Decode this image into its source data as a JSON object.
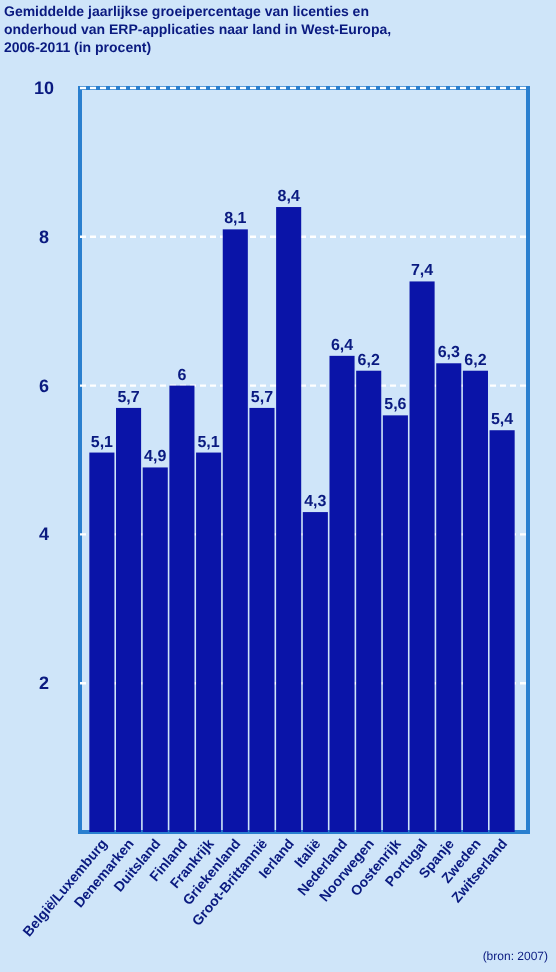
{
  "chart_data": {
    "type": "bar",
    "title": "Gemiddelde jaarlijkse groeipercentage van licenties en onderhoud van ERP-applicaties naar land in West-Europa, 2006-2011 (in procent)",
    "categories": [
      "België/Luxemburg",
      "Denemarken",
      "Duitsland",
      "Finland",
      "Frankrijk",
      "Griekenland",
      "Groot-Brittannië",
      "Ierland",
      "Italië",
      "Nederland",
      "Noorwegen",
      "Oostenrijk",
      "Portugal",
      "Spanje",
      "Zweden",
      "Zwitserland"
    ],
    "values": [
      5.1,
      5.7,
      4.9,
      6,
      5.1,
      8.1,
      5.7,
      8.4,
      4.3,
      6.4,
      6.2,
      5.6,
      7.4,
      6.3,
      6.2,
      5.4
    ],
    "value_labels": [
      "5,1",
      "5,7",
      "4,9",
      "6",
      "5,1",
      "8,1",
      "5,7",
      "8,4",
      "4,3",
      "6,4",
      "6,2",
      "5,6",
      "7,4",
      "6,3",
      "6,2",
      "5,4"
    ],
    "color": "#0a14a8",
    "ylim": [
      0,
      10
    ],
    "yticks": [
      2,
      4,
      6,
      8,
      10
    ],
    "grid": "y",
    "annotations": [
      "(bron: 2007)"
    ]
  }
}
